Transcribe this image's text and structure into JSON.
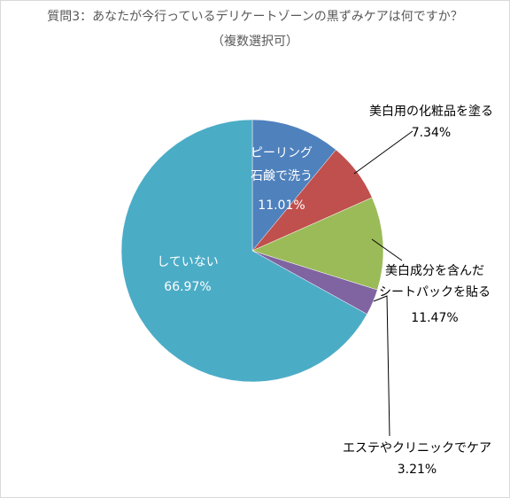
{
  "chart_data": {
    "type": "pie",
    "title": "質問3：あなたが今行っているデリケートゾーンの黒ずみケアは何ですか？",
    "subtitle": "（複数選択可）",
    "slices": [
      {
        "label_lines": [
          "ピーリング",
          "石鹸で洗う"
        ],
        "value_text": "11.01%",
        "value": 11.01,
        "color": "#4f81bd"
      },
      {
        "label_lines": [
          "美白用の化粧品を塗る"
        ],
        "value_text": "7.34%",
        "value": 7.34,
        "color": "#c0504d"
      },
      {
        "label_lines": [
          "美白成分を含んだ",
          "シートパックを貼る"
        ],
        "value_text": "11.47%",
        "value": 11.47,
        "color": "#9bbb59"
      },
      {
        "label_lines": [
          "エステやクリニックでケア"
        ],
        "value_text": "3.21%",
        "value": 3.21,
        "color": "#8064a2"
      },
      {
        "label_lines": [
          "していない"
        ],
        "value_text": "66.97%",
        "value": 66.97,
        "color": "#4bacc6"
      }
    ]
  }
}
